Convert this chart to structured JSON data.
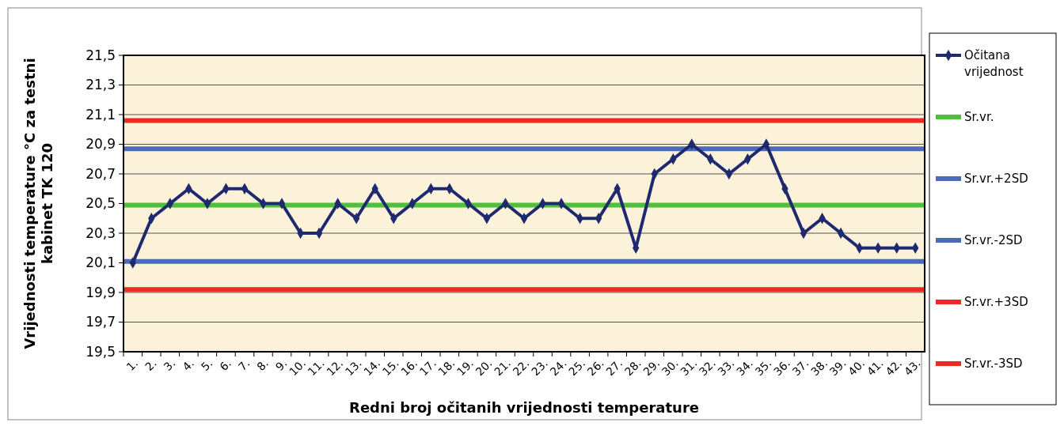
{
  "chart_data": {
    "type": "line",
    "xlabel": "Redni broj očitanih vrijednosti temperature",
    "ylabel": "Vrijednosti temperature °C za testni kabinet TK 120",
    "categories": [
      "1.",
      "2.",
      "3.",
      "4.",
      "5.",
      "6.",
      "7.",
      "8.",
      "9.",
      "10.",
      "11.",
      "12.",
      "13.",
      "14.",
      "15.",
      "16.",
      "17.",
      "18.",
      "19.",
      "20.",
      "21.",
      "22.",
      "23.",
      "24.",
      "25.",
      "26.",
      "27.",
      "28.",
      "29.",
      "30.",
      "31.",
      "32.",
      "33.",
      "34.",
      "35.",
      "36.",
      "37.",
      "38.",
      "39.",
      "40.",
      "41.",
      "42.",
      "43."
    ],
    "series": [
      {
        "name": "Očitana vrijednost",
        "color": "#1f2a6e",
        "values": [
          20.1,
          20.4,
          20.5,
          20.6,
          20.5,
          20.6,
          20.6,
          20.5,
          20.5,
          20.3,
          20.3,
          20.5,
          20.4,
          20.6,
          20.4,
          20.5,
          20.6,
          20.6,
          20.5,
          20.4,
          20.5,
          20.4,
          20.5,
          20.5,
          20.4,
          20.4,
          20.6,
          20.2,
          20.7,
          20.8,
          20.9,
          20.8,
          20.7,
          20.8,
          20.9,
          20.6,
          20.3,
          20.4,
          20.3,
          20.2,
          20.2,
          20.2,
          20.2
        ]
      }
    ],
    "ref_lines": [
      {
        "axis": "y",
        "value": 20.49,
        "label": "Sr.vr.",
        "color": "#4fbf3c"
      },
      {
        "axis": "y",
        "value": 20.87,
        "label": "Sr.vr.+2SD",
        "color": "#4a6bb8"
      },
      {
        "axis": "y",
        "value": 20.11,
        "label": "Sr.vr.-2SD",
        "color": "#4a6bb8"
      },
      {
        "axis": "y",
        "value": 21.06,
        "label": "Sr.vr.+3SD",
        "color": "#ee2a24"
      },
      {
        "axis": "y",
        "value": 19.92,
        "label": "Sr.vr.-3SD",
        "color": "#ee2a24"
      }
    ],
    "ylim": [
      19.5,
      21.5
    ],
    "yticks": [
      {
        "value": 19.5,
        "label": "19,5"
      },
      {
        "value": 19.7,
        "label": "19,7"
      },
      {
        "value": 19.9,
        "label": "19,9"
      },
      {
        "value": 20.1,
        "label": "20,1"
      },
      {
        "value": 20.3,
        "label": "20,3"
      },
      {
        "value": 20.5,
        "label": "20,5"
      },
      {
        "value": 20.7,
        "label": "20,7"
      },
      {
        "value": 20.9,
        "label": "20,9"
      },
      {
        "value": 21.1,
        "label": "21,1"
      },
      {
        "value": 21.3,
        "label": "21,3"
      },
      {
        "value": 21.5,
        "label": "21,5"
      }
    ],
    "grid": "y",
    "legend": "right",
    "marker": "diamond"
  }
}
